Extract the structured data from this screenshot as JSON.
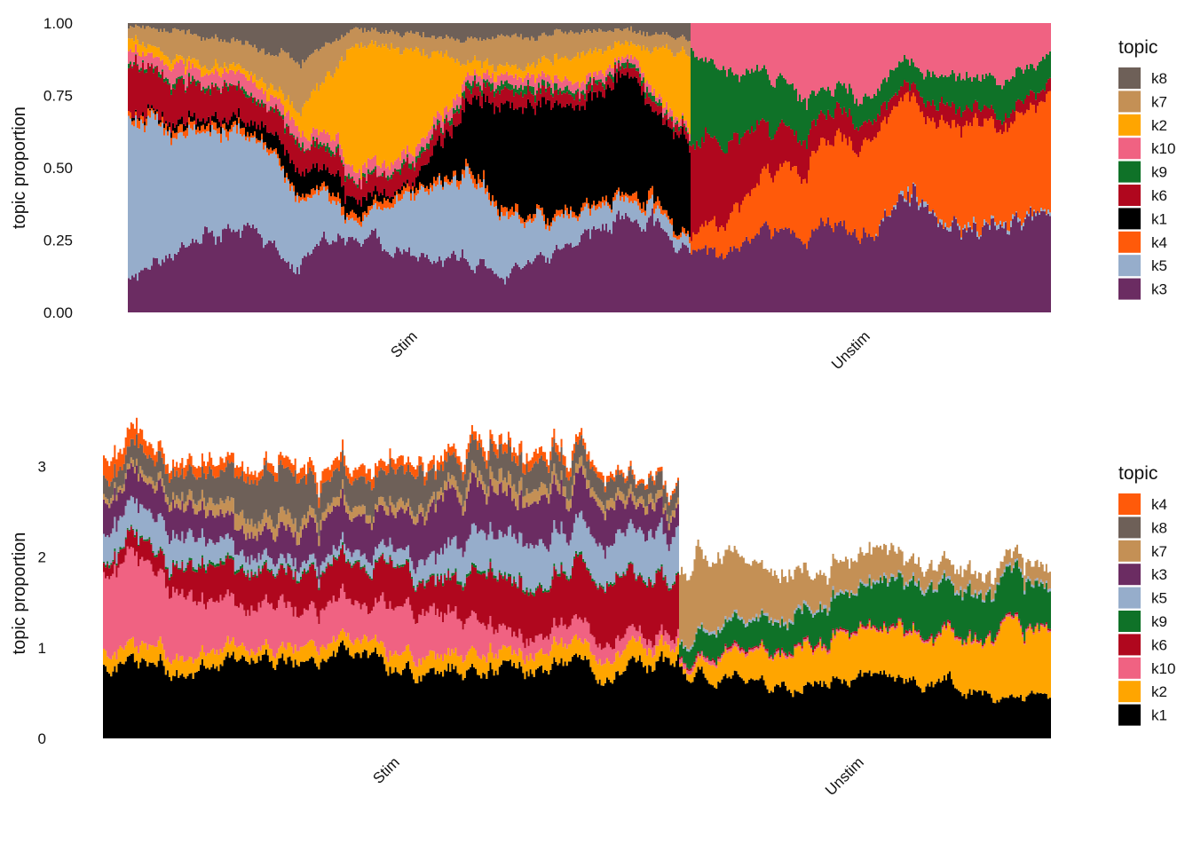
{
  "colors": {
    "k1": "#000000",
    "k2": "#FFA500",
    "k3": "#6B2C62",
    "k4": "#FF5A0A",
    "k5": "#96ADCB",
    "k6": "#B0071E",
    "k7": "#C49055",
    "k8": "#6E6058",
    "k9": "#0F7228",
    "k10": "#F06282"
  },
  "chart_data": [
    {
      "type": "area",
      "description": "stacked per-cell topic proportion structure plot, cells grouped by condition",
      "ylabel": "topic proportion",
      "ylim": [
        0,
        1
      ],
      "yticks": [
        "0.00",
        "0.25",
        "0.50",
        "0.75",
        "1.00"
      ],
      "yticks_values": [
        0,
        0.25,
        0.5,
        0.75,
        1.0
      ],
      "categories": [
        "Stim",
        "Unstim"
      ],
      "legend_title": "topic",
      "legend": [
        "k8",
        "k7",
        "k2",
        "k10",
        "k9",
        "k6",
        "k1",
        "k4",
        "k5",
        "k3"
      ],
      "stack_order": [
        "k3",
        "k5",
        "k4",
        "k1",
        "k6",
        "k9",
        "k10",
        "k2",
        "k7",
        "k8"
      ],
      "series": [
        {
          "name": "k3",
          "values": [
            [
              0.12,
              0.22,
              0.3,
              0.18,
              0.25,
              0.2,
              0.2,
              0.15,
              0.26,
              0.3,
              0.22
            ],
            [
              0.18,
              0.2,
              0.3,
              0.25,
              0.3,
              0.28,
              0.42,
              0.32,
              0.3,
              0.32,
              0.3
            ]
          ]
        },
        {
          "name": "k5",
          "values": [
            [
              0.55,
              0.4,
              0.33,
              0.25,
              0.05,
              0.2,
              0.3,
              0.15,
              0.1,
              0.06,
              0.05
            ],
            [
              0.0,
              0.0,
              0.0,
              0.0,
              0.0,
              0.0,
              0.01,
              0.01,
              0.01,
              0.01,
              0.01
            ]
          ]
        },
        {
          "name": "k4",
          "values": [
            [
              0.02,
              0.02,
              0.02,
              0.02,
              0.02,
              0.02,
              0.02,
              0.02,
              0.02,
              0.02,
              0.02
            ],
            [
              0.05,
              0.1,
              0.18,
              0.22,
              0.28,
              0.3,
              0.33,
              0.32,
              0.38,
              0.35,
              0.4
            ]
          ]
        },
        {
          "name": "k1",
          "values": [
            [
              0.0,
              0.02,
              0.03,
              0.08,
              0.05,
              0.0,
              0.22,
              0.4,
              0.38,
              0.45,
              0.4
            ],
            [
              0.0,
              0.0,
              0.0,
              0.0,
              0.0,
              0.0,
              0.0,
              0.0,
              0.0,
              0.0,
              0.0
            ]
          ]
        },
        {
          "name": "k6",
          "values": [
            [
              0.16,
              0.12,
              0.1,
              0.08,
              0.06,
              0.06,
              0.04,
              0.05,
              0.05,
              0.03,
              0.03
            ],
            [
              0.35,
              0.28,
              0.18,
              0.12,
              0.08,
              0.06,
              0.04,
              0.06,
              0.05,
              0.04,
              0.05
            ]
          ]
        },
        {
          "name": "k9",
          "values": [
            [
              0.01,
              0.01,
              0.01,
              0.01,
              0.01,
              0.01,
              0.02,
              0.02,
              0.02,
              0.01,
              0.01
            ],
            [
              0.34,
              0.24,
              0.18,
              0.14,
              0.08,
              0.1,
              0.08,
              0.1,
              0.1,
              0.12,
              0.1
            ]
          ]
        },
        {
          "name": "k10",
          "values": [
            [
              0.05,
              0.05,
              0.04,
              0.04,
              0.04,
              0.03,
              0.03,
              0.03,
              0.03,
              0.02,
              0.02
            ],
            [
              0.08,
              0.18,
              0.16,
              0.27,
              0.26,
              0.26,
              0.12,
              0.19,
              0.16,
              0.16,
              0.14
            ]
          ]
        },
        {
          "name": "k2",
          "values": [
            [
              0.04,
              0.03,
              0.02,
              0.05,
              0.45,
              0.4,
              0.05,
              0.03,
              0.1,
              0.05,
              0.35
            ],
            [
              0.0,
              0.0,
              0.0,
              0.0,
              0.0,
              0.0,
              0.0,
              0.0,
              0.0,
              0.0,
              0.0
            ]
          ]
        },
        {
          "name": "k7",
          "values": [
            [
              0.04,
              0.1,
              0.08,
              0.16,
              0.05,
              0.05,
              0.07,
              0.1,
              0.1,
              0.04,
              0.06
            ],
            [
              0.0,
              0.0,
              0.0,
              0.0,
              0.0,
              0.0,
              0.0,
              0.0,
              0.0,
              0.0,
              0.0
            ]
          ]
        },
        {
          "name": "k8",
          "values": [
            [
              0.01,
              0.03,
              0.07,
              0.13,
              0.02,
              0.03,
              0.05,
              0.05,
              0.04,
              0.02,
              0.06
            ],
            [
              0.0,
              0.0,
              0.0,
              0.0,
              0.0,
              0.0,
              0.0,
              0.0,
              0.0,
              0.0,
              0.0
            ]
          ]
        }
      ]
    },
    {
      "type": "area",
      "description": "stacked per-cell topic values (unnormalized), cells grouped by condition",
      "ylabel": "topic proportion",
      "ylim": [
        0,
        3.2
      ],
      "yticks": [
        "0",
        "1",
        "2",
        "3"
      ],
      "yticks_values": [
        0,
        1,
        2,
        3
      ],
      "categories": [
        "Stim",
        "Unstim"
      ],
      "legend_title": "topic",
      "legend": [
        "k4",
        "k8",
        "k7",
        "k3",
        "k5",
        "k9",
        "k6",
        "k10",
        "k2",
        "k1"
      ],
      "stack_order": [
        "k1",
        "k2",
        "k10",
        "k6",
        "k9",
        "k5",
        "k3",
        "k7",
        "k8",
        "k4"
      ],
      "series": [
        {
          "name": "k1",
          "values": [
            [
              0.78,
              0.8,
              0.82,
              0.82,
              0.8,
              0.8,
              0.8,
              0.78,
              0.8,
              0.82,
              0.84
            ],
            [
              0.7,
              0.62,
              0.65,
              0.6,
              0.62,
              0.62,
              0.58,
              0.65,
              0.55,
              0.48,
              0.4
            ]
          ]
        },
        {
          "name": "k2",
          "values": [
            [
              0.18,
              0.18,
              0.16,
              0.15,
              0.16,
              0.18,
              0.2,
              0.18,
              0.18,
              0.18,
              0.18
            ],
            [
              0.02,
              0.22,
              0.3,
              0.4,
              0.45,
              0.5,
              0.55,
              0.55,
              0.6,
              0.68,
              0.75
            ]
          ]
        },
        {
          "name": "k10",
          "values": [
            [
              0.85,
              0.8,
              0.55,
              0.45,
              0.5,
              0.55,
              0.45,
              0.2,
              0.2,
              0.15,
              0.1
            ],
            [
              0.05,
              0.03,
              0.03,
              0.02,
              0.02,
              0.02,
              0.02,
              0.02,
              0.02,
              0.02,
              0.02
            ]
          ]
        },
        {
          "name": "k6",
          "values": [
            [
              0.12,
              0.25,
              0.4,
              0.3,
              0.45,
              0.5,
              0.35,
              0.5,
              0.55,
              0.6,
              0.6
            ],
            [
              0.02,
              0.02,
              0.02,
              0.02,
              0.02,
              0.02,
              0.02,
              0.02,
              0.02,
              0.02,
              0.02
            ]
          ]
        },
        {
          "name": "k9",
          "values": [
            [
              0.02,
              0.02,
              0.03,
              0.02,
              0.02,
              0.02,
              0.03,
              0.03,
              0.03,
              0.02,
              0.02
            ],
            [
              0.15,
              0.25,
              0.3,
              0.35,
              0.38,
              0.42,
              0.48,
              0.5,
              0.52,
              0.5,
              0.4
            ]
          ]
        },
        {
          "name": "k5",
          "values": [
            [
              0.3,
              0.35,
              0.2,
              0.1,
              0.1,
              0.15,
              0.3,
              0.45,
              0.4,
              0.45,
              0.5
            ],
            [
              0.02,
              0.03,
              0.03,
              0.03,
              0.03,
              0.03,
              0.03,
              0.03,
              0.03,
              0.03,
              0.03
            ]
          ]
        },
        {
          "name": "k3",
          "values": [
            [
              0.35,
              0.3,
              0.25,
              0.3,
              0.45,
              0.4,
              0.55,
              0.5,
              0.5,
              0.3,
              0.2
            ],
            [
              0.0,
              0.0,
              0.0,
              0.0,
              0.0,
              0.0,
              0.0,
              0.0,
              0.0,
              0.0,
              0.0
            ]
          ]
        },
        {
          "name": "k7",
          "values": [
            [
              0.05,
              0.08,
              0.15,
              0.15,
              0.1,
              0.1,
              0.1,
              0.15,
              0.1,
              0.1,
              0.08
            ],
            [
              0.94,
              0.73,
              0.52,
              0.45,
              0.35,
              0.33,
              0.25,
              0.2,
              0.18,
              0.15,
              0.2
            ]
          ]
        },
        {
          "name": "k8",
          "values": [
            [
              0.2,
              0.25,
              0.3,
              0.55,
              0.3,
              0.4,
              0.3,
              0.3,
              0.25,
              0.2,
              0.18
            ],
            [
              0.0,
              0.0,
              0.0,
              0.0,
              0.0,
              0.0,
              0.0,
              0.0,
              0.0,
              0.0,
              0.0
            ]
          ]
        },
        {
          "name": "k4",
          "values": [
            [
              0.2,
              0.15,
              0.12,
              0.1,
              0.12,
              0.12,
              0.1,
              0.1,
              0.1,
              0.05,
              0.05
            ],
            [
              0.0,
              0.0,
              0.0,
              0.0,
              0.0,
              0.0,
              0.0,
              0.0,
              0.0,
              0.0,
              0.0
            ]
          ]
        }
      ]
    }
  ]
}
